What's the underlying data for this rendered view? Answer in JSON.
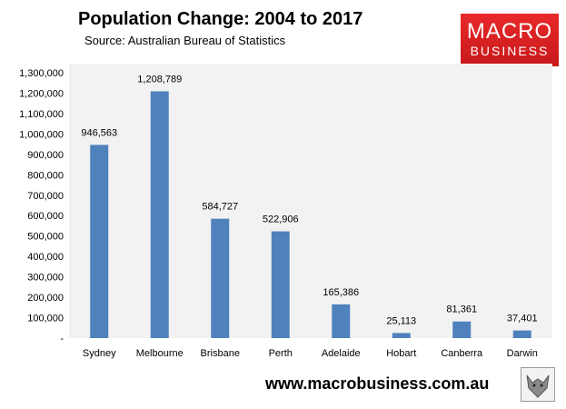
{
  "header": {
    "title": "Population Change: 2004 to 2017",
    "subtitle": "Source: Australian Bureau of Statistics"
  },
  "logo": {
    "line1": "MACRO",
    "line2": "BUSINESS",
    "color": "#d62022"
  },
  "footer": {
    "url": "www.macrobusiness.com.au"
  },
  "colors": {
    "bar": "#4f81bd",
    "plot_bg": "#f2f2f2"
  },
  "chart_data": {
    "type": "bar",
    "title": "Population Change: 2004 to 2017",
    "subtitle": "Source: Australian Bureau of Statistics",
    "categories": [
      "Sydney",
      "Melbourne",
      "Brisbane",
      "Perth",
      "Adelaide",
      "Hobart",
      "Canberra",
      "Darwin"
    ],
    "values": [
      946563,
      1208789,
      584727,
      522906,
      165386,
      25113,
      81361,
      37401
    ],
    "data_labels": [
      "946,563",
      "1,208,789",
      "584,727",
      "522,906",
      "165,386",
      "25,113",
      "81,361",
      "37,401"
    ],
    "yticks": [
      "-",
      "100,000",
      "200,000",
      "300,000",
      "400,000",
      "500,000",
      "600,000",
      "700,000",
      "800,000",
      "900,000",
      "1,000,000",
      "1,100,000",
      "1,200,000",
      "1,300,000"
    ],
    "ylim": [
      0,
      1300000
    ],
    "xlabel": "",
    "ylabel": "",
    "grid": false,
    "legend": "none"
  }
}
